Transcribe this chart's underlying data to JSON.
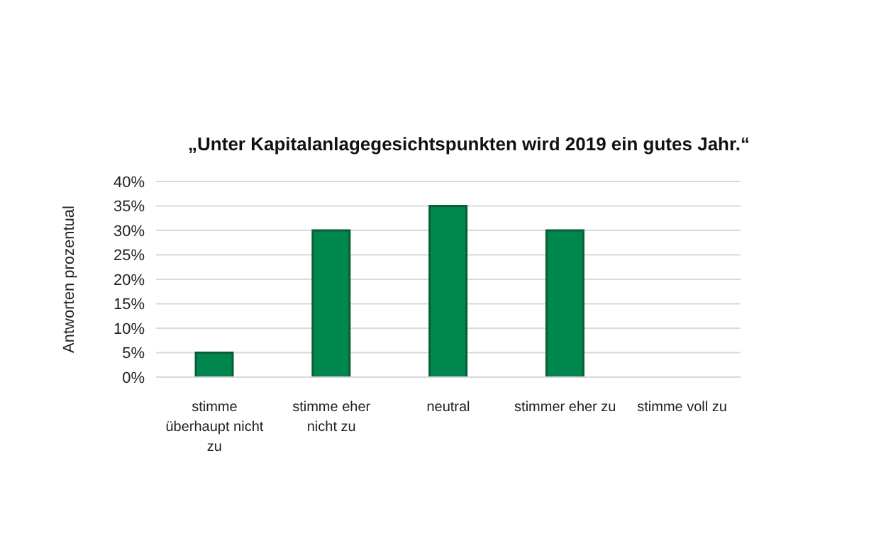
{
  "chart_data": {
    "type": "bar",
    "title": "„Unter Kapitalanlagegesichtspunkten wird 2019 ein gutes Jahr.“",
    "ylabel": "Antworten prozentual",
    "categories": [
      "stimme überhaupt nicht zu",
      "stimme eher nicht zu",
      "neutral",
      "stimmer eher zu",
      "stimme voll zu"
    ],
    "values": [
      5,
      30,
      35,
      30,
      0
    ],
    "color": "#00874f",
    "ylim": [
      0,
      40
    ],
    "yticks": [
      {
        "value": 0,
        "label": "0%"
      },
      {
        "value": 5,
        "label": "5%"
      },
      {
        "value": 10,
        "label": "10%"
      },
      {
        "value": 15,
        "label": "15%"
      },
      {
        "value": 20,
        "label": "20%"
      },
      {
        "value": 25,
        "label": "25%"
      },
      {
        "value": 30,
        "label": "30%"
      },
      {
        "value": 35,
        "label": "35%"
      },
      {
        "value": 40,
        "label": "40%"
      }
    ],
    "grid": "y"
  }
}
